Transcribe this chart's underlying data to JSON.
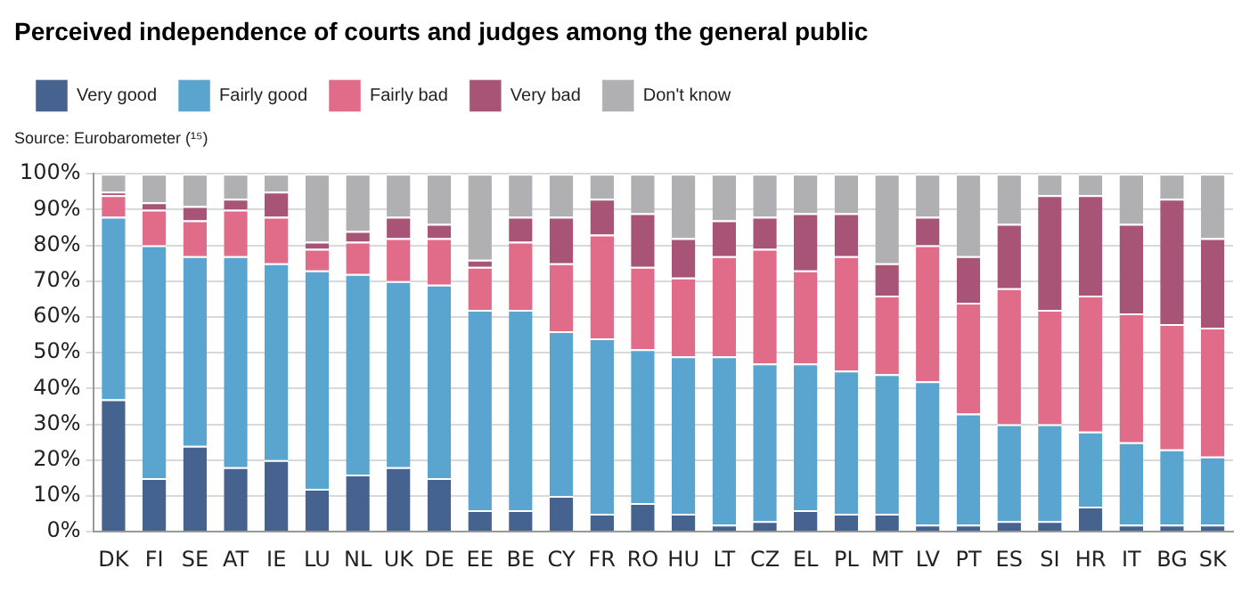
{
  "chart_data": {
    "type": "bar",
    "stacked": true,
    "title": "Perceived independence of courts and judges among the general public",
    "annotations": [
      "Source: Eurobarometer (¹⁵)"
    ],
    "categories": [
      "DK",
      "FI",
      "SE",
      "AT",
      "IE",
      "LU",
      "NL",
      "UK",
      "DE",
      "EE",
      "BE",
      "CY",
      "FR",
      "RO",
      "HU",
      "LT",
      "CZ",
      "EL",
      "PL",
      "MT",
      "LV",
      "PT",
      "ES",
      "SI",
      "HR",
      "IT",
      "BG",
      "SK"
    ],
    "series": [
      {
        "name": "Very good",
        "color": "#46628f",
        "values": [
          37,
          15,
          24,
          18,
          20,
          12,
          16,
          18,
          15,
          6,
          6,
          10,
          5,
          8,
          5,
          2,
          3,
          6,
          5,
          5,
          2,
          2,
          3,
          3,
          7,
          2,
          2,
          2
        ]
      },
      {
        "name": "Fairly good",
        "color": "#5aa5d0",
        "values": [
          51,
          65,
          53,
          59,
          55,
          61,
          56,
          52,
          54,
          56,
          56,
          46,
          49,
          43,
          44,
          47,
          44,
          41,
          40,
          39,
          40,
          31,
          27,
          27,
          21,
          23,
          21,
          19
        ]
      },
      {
        "name": "Fairly bad",
        "color": "#e06c8a",
        "values": [
          6,
          10,
          10,
          13,
          13,
          6,
          9,
          12,
          13,
          12,
          19,
          19,
          29,
          23,
          22,
          28,
          32,
          26,
          32,
          22,
          38,
          31,
          38,
          32,
          38,
          36,
          35,
          36
        ]
      },
      {
        "name": "Very bad",
        "color": "#a85477",
        "values": [
          1,
          2,
          4,
          3,
          7,
          2,
          3,
          6,
          4,
          2,
          7,
          13,
          10,
          15,
          11,
          10,
          9,
          16,
          12,
          9,
          8,
          13,
          18,
          32,
          28,
          25,
          35,
          25
        ]
      },
      {
        "name": "Don't know",
        "color": "#b0b0b2",
        "values": [
          5,
          8,
          9,
          7,
          5,
          19,
          16,
          12,
          14,
          24,
          12,
          12,
          7,
          11,
          18,
          13,
          12,
          11,
          11,
          25,
          12,
          23,
          14,
          6,
          6,
          14,
          7,
          18
        ]
      }
    ],
    "ylim": [
      0,
      100
    ],
    "yticks": [
      {
        "value": 0,
        "label": "0%"
      },
      {
        "value": 10,
        "label": "10%"
      },
      {
        "value": 20,
        "label": "20%"
      },
      {
        "value": 30,
        "label": "30%"
      },
      {
        "value": 40,
        "label": "40%"
      },
      {
        "value": 50,
        "label": "50%"
      },
      {
        "value": 60,
        "label": "60%"
      },
      {
        "value": 70,
        "label": "70%"
      },
      {
        "value": 80,
        "label": "80%"
      },
      {
        "value": 90,
        "label": "90%"
      },
      {
        "value": 100,
        "label": "100%"
      }
    ],
    "grid": "y",
    "legend": "top left"
  }
}
